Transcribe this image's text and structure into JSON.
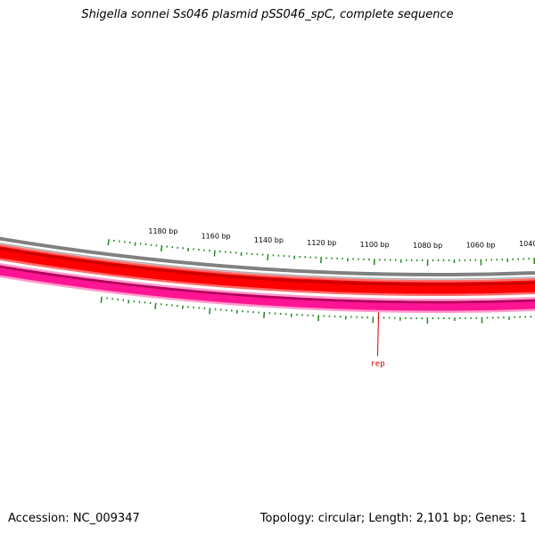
{
  "map": {
    "title": "Shigella sonnei Ss046 plasmid pSS046_spC, complete sequence",
    "accession_text": "Accession: NC_009347",
    "summary_text": "Topology: circular; Length: 2,101 bp; Genes: 1",
    "topology": "circular",
    "length_bp": 2101,
    "gene_count": 1
  },
  "ruler": {
    "labels": [
      "1180 bp",
      "1160 bp",
      "1140 bp",
      "1120 bp",
      "1100 bp",
      "1080 bp",
      "1060 bp",
      "1040 bp"
    ],
    "positions_bp": [
      1180,
      1160,
      1140,
      1120,
      1100,
      1080,
      1060,
      1040
    ],
    "tick_color": "#1f8a1f"
  },
  "tracks": {
    "backbone_color": "#808080",
    "forward_cds_color": "#ff0000",
    "forward_cds_edge_color": "#cc0000",
    "reverse_cds_color": "#ff1493",
    "reverse_cds_edge_color": "#b0005a"
  },
  "genes": [
    {
      "name": "rep",
      "label": "rep",
      "strand": "reverse",
      "color": "#cc0000"
    }
  ]
}
